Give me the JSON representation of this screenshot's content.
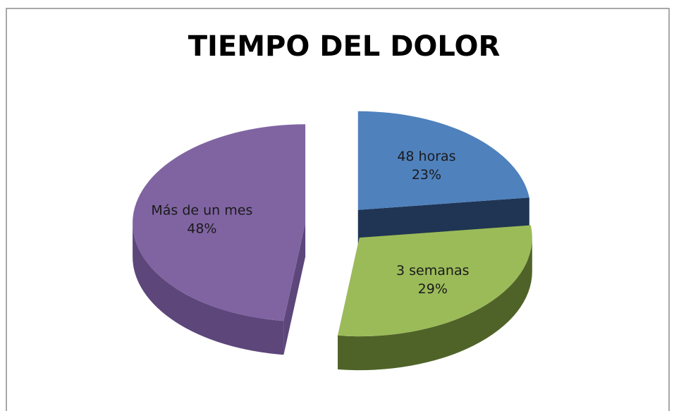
{
  "chart_data": {
    "type": "pie",
    "title": "TIEMPO DEL DOLOR",
    "categories": [
      "48 horas",
      "3 semanas",
      "Más de un mes"
    ],
    "values": [
      23,
      29,
      48
    ],
    "value_labels": [
      "23%",
      "29%",
      "48%"
    ],
    "colors": [
      "#4f81bd",
      "#9bbb59",
      "#8064a2"
    ],
    "side_colors": [
      "#1f3553",
      "#4f6328",
      "#5c467a"
    ]
  }
}
